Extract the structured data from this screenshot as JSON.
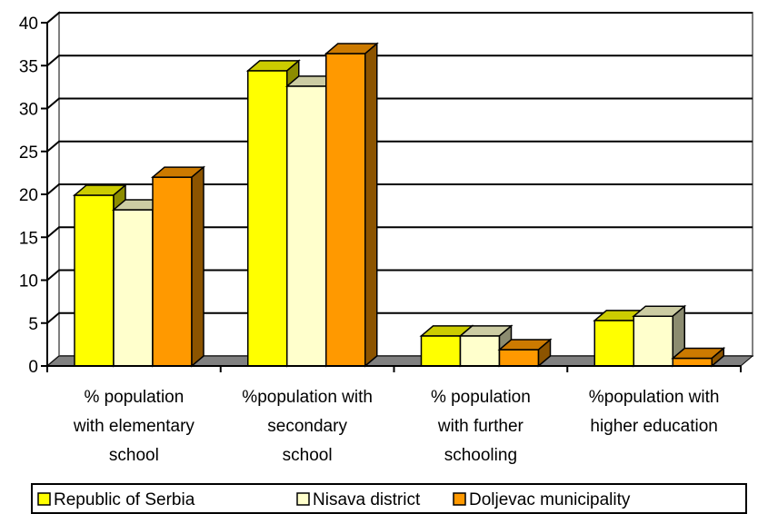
{
  "chart_data": {
    "type": "bar",
    "style": "3d-clustered-column",
    "title": "",
    "xlabel": "",
    "ylabel": "",
    "ylim": [
      0,
      40
    ],
    "yticks": [
      0,
      5,
      10,
      15,
      20,
      25,
      30,
      35,
      40
    ],
    "grid": true,
    "legend_position": "bottom",
    "categories": [
      [
        "% population",
        "with elementary",
        "school"
      ],
      [
        "%population with",
        "secondary",
        "school"
      ],
      [
        "% population",
        "with further",
        "schooling"
      ],
      [
        "%population with",
        "higher education"
      ]
    ],
    "series": [
      {
        "name": "Republic of Serbia",
        "color": "#FFFF00",
        "values": [
          19.9,
          34.4,
          3.5,
          5.3
        ]
      },
      {
        "name": "Nisava district",
        "color": "#FFFFCC",
        "values": [
          18.2,
          32.6,
          3.5,
          5.8
        ]
      },
      {
        "name": "Doljevac municipality",
        "color": "#FF9900",
        "values": [
          22.0,
          36.4,
          1.9,
          0.9
        ]
      }
    ]
  }
}
